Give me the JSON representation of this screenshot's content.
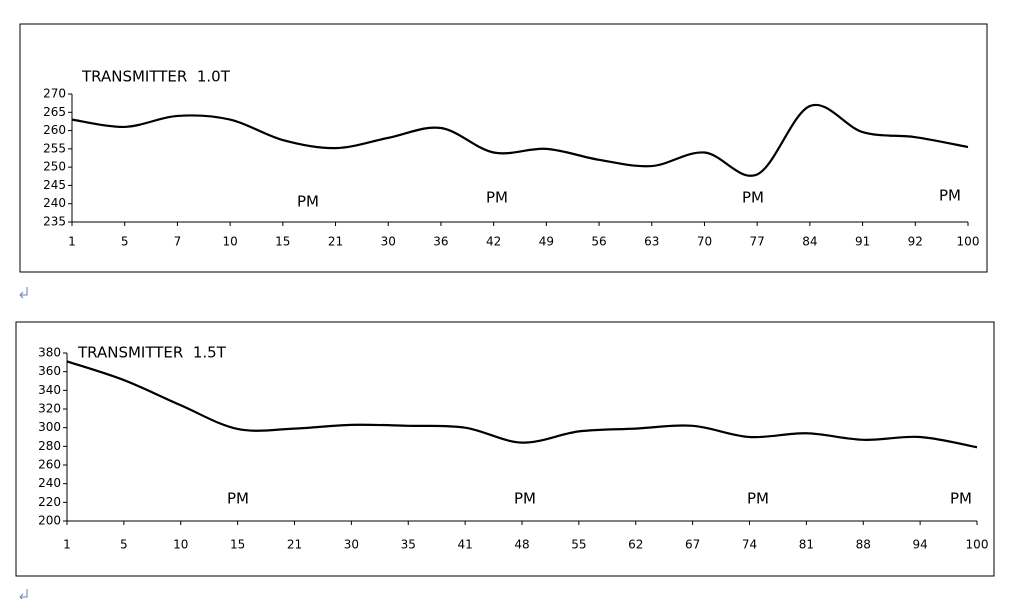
{
  "chart_data": [
    {
      "type": "line",
      "title": "TRANSMITTER  1.0T",
      "categories": [
        "1",
        "5",
        "7",
        "10",
        "15",
        "21",
        "30",
        "36",
        "42",
        "49",
        "56",
        "63",
        "70",
        "77",
        "84",
        "91",
        "92",
        "100"
      ],
      "values": [
        263,
        261,
        264,
        263,
        257.4,
        255.2,
        258,
        260.7,
        254,
        255,
        252,
        250.3,
        254,
        248,
        266.7,
        259.6,
        258.2,
        255.5
      ],
      "color": "#000000",
      "ylim": [
        235,
        270
      ],
      "yticks": [
        235,
        240,
        245,
        250,
        255,
        260,
        265,
        270
      ],
      "annotations": [
        "PM",
        "PM",
        "PM",
        "PM"
      ]
    },
    {
      "type": "line",
      "title": "TRANSMITTER  1.5T",
      "categories": [
        "1",
        "5",
        "10",
        "15",
        "21",
        "30",
        "35",
        "41",
        "48",
        "55",
        "62",
        "67",
        "74",
        "81",
        "88",
        "94",
        "100"
      ],
      "values": [
        371,
        351,
        324,
        298.6,
        299,
        303,
        302,
        300,
        284,
        296,
        299,
        302,
        290,
        294,
        287,
        290,
        279
      ],
      "color": "#000000",
      "ylim": [
        200,
        380
      ],
      "yticks": [
        200,
        220,
        240,
        260,
        280,
        300,
        320,
        340,
        360,
        380
      ],
      "annotations": [
        "PM",
        "PM",
        "PM",
        "PM"
      ]
    }
  ]
}
